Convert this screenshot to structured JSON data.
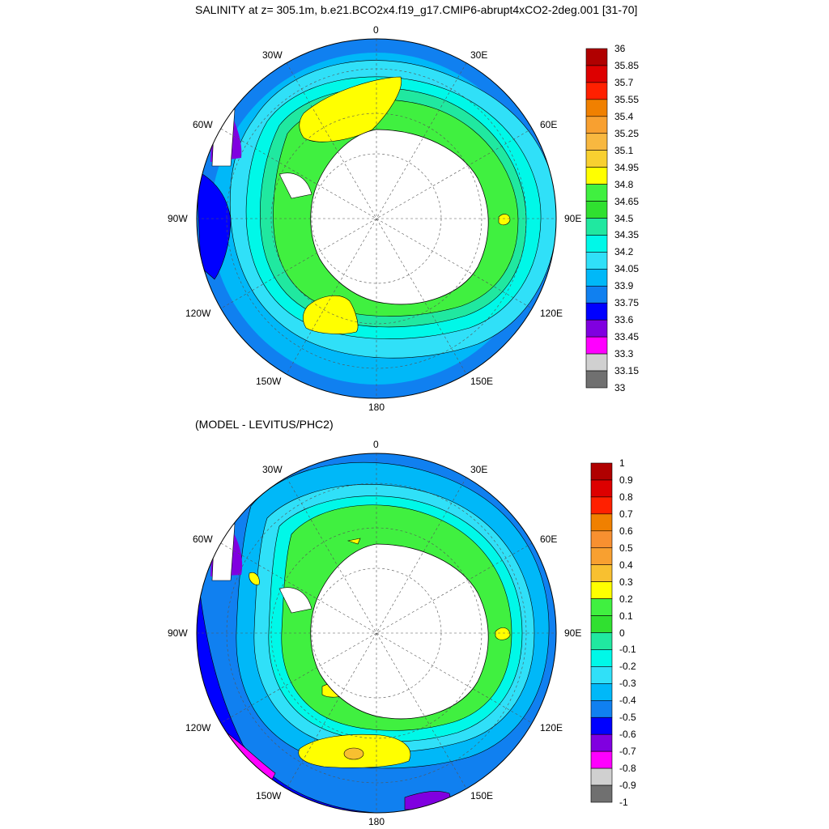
{
  "top_panel": {
    "title": "SALINITY at z= 305.1m, b.e21.BCO2x4.f19_g17.CMIP6-abrupt4xCO2-2deg.001 [31-70]",
    "lon_labels": [
      "0",
      "30E",
      "60E",
      "90E",
      "120E",
      "150E",
      "180",
      "150W",
      "120W",
      "90W",
      "60W",
      "30W"
    ],
    "colorbar": {
      "labels": [
        "36",
        "35.85",
        "35.7",
        "35.55",
        "35.4",
        "35.25",
        "35.1",
        "34.95",
        "34.8",
        "34.65",
        "34.5",
        "34.35",
        "34.2",
        "34.05",
        "33.9",
        "33.75",
        "33.6",
        "33.45",
        "33.3",
        "33.15",
        "33"
      ],
      "colors": [
        "#b00000",
        "#dd0000",
        "#ff2000",
        "#f08000",
        "#f8a030",
        "#f8b840",
        "#f8d030",
        "#ffff00",
        "#40f040",
        "#30e030",
        "#20e8a0",
        "#00f8e8",
        "#30e0f8",
        "#00b8f8",
        "#1080f0",
        "#0000ff",
        "#8000e0",
        "#ff00ff",
        "#d0d0d0",
        "#707070"
      ]
    }
  },
  "bottom_panel": {
    "title": "(MODEL - LEVITUS/PHC2)",
    "lon_labels": [
      "0",
      "30E",
      "60E",
      "90E",
      "120E",
      "150E",
      "180",
      "150W",
      "120W",
      "90W",
      "60W",
      "30W"
    ],
    "colorbar": {
      "labels": [
        "1",
        "0.9",
        "0.8",
        "0.7",
        "0.6",
        "0.5",
        "0.4",
        "0.3",
        "0.2",
        "0.1",
        "0",
        "-0.1",
        "-0.2",
        "-0.3",
        "-0.4",
        "-0.5",
        "-0.6",
        "-0.7",
        "-0.8",
        "-0.9",
        "-1"
      ],
      "colors": [
        "#b00000",
        "#dd0000",
        "#ff2000",
        "#f08000",
        "#f89030",
        "#f8a030",
        "#f8c030",
        "#ffff00",
        "#40f040",
        "#30e030",
        "#20e8a0",
        "#00f8e8",
        "#30e0f8",
        "#00b8f8",
        "#1080f0",
        "#0000ff",
        "#8000e0",
        "#ff00ff",
        "#d0d0d0",
        "#707070"
      ]
    }
  }
}
